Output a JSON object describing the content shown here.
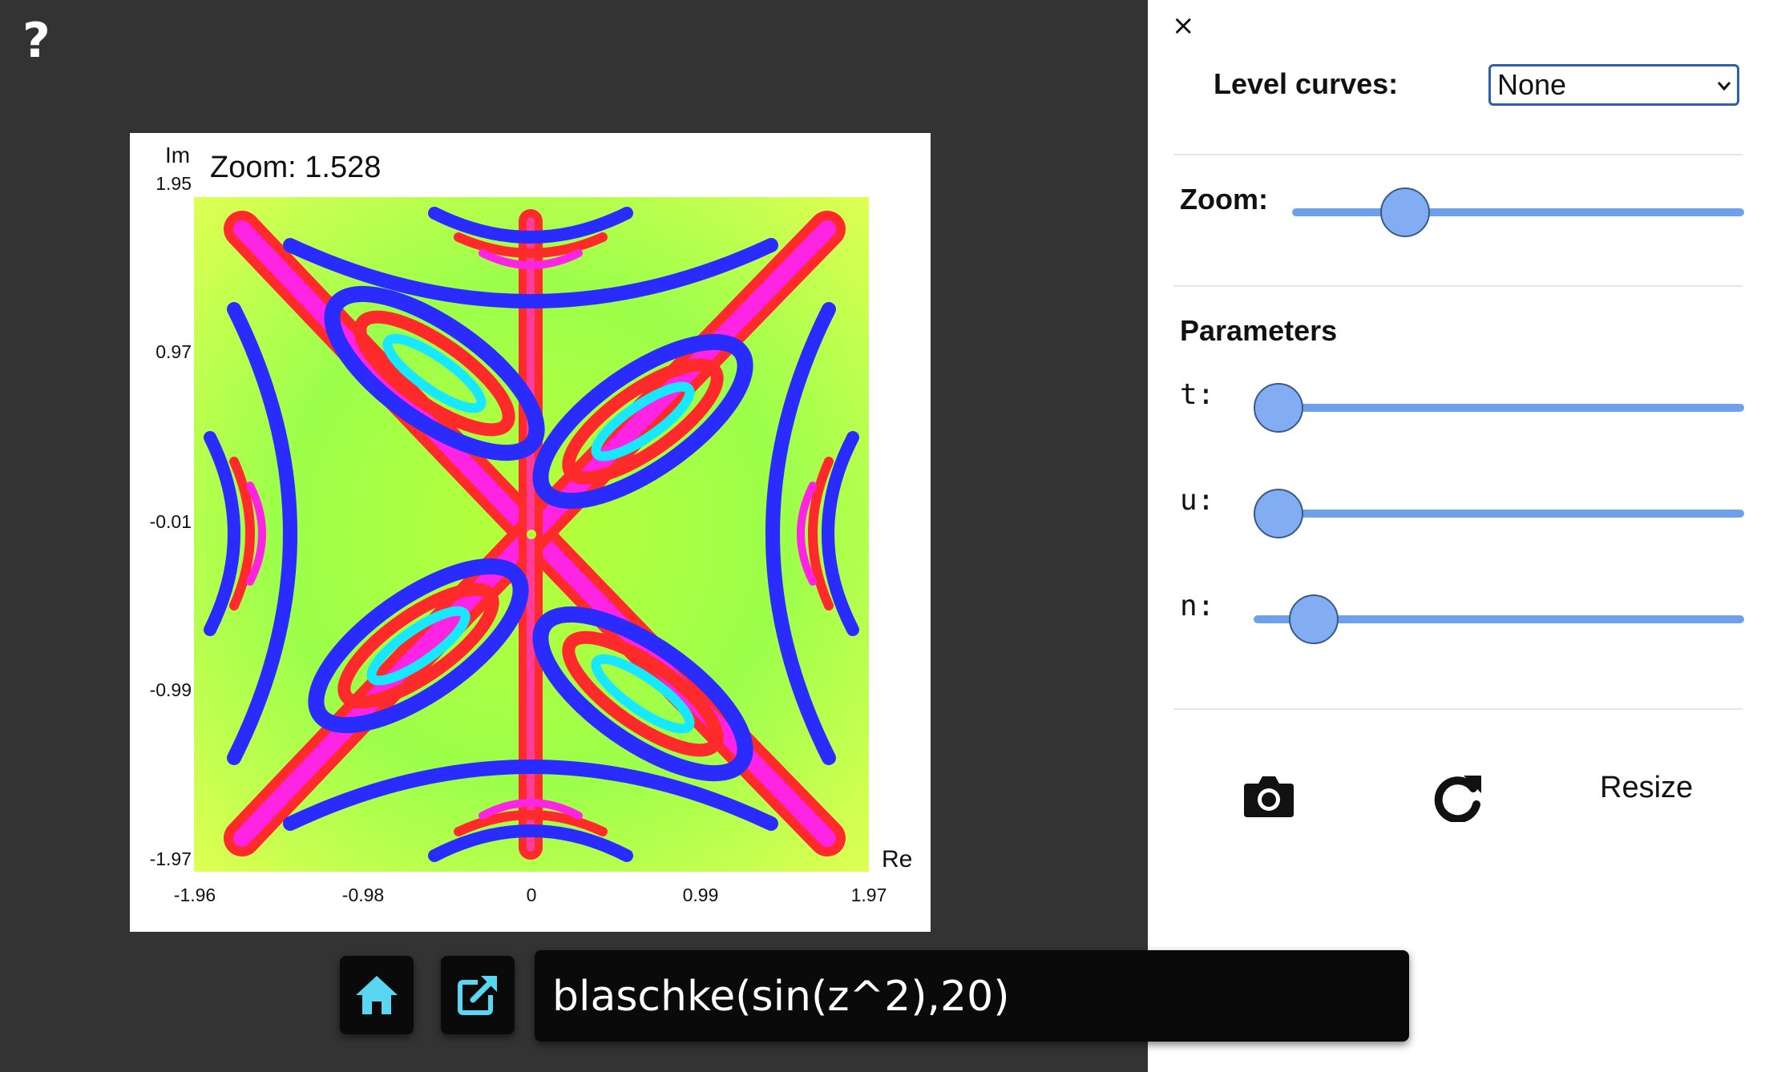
{
  "help": {
    "label": "?"
  },
  "plot": {
    "zoom_readout": "Zoom: 1.528",
    "axis_im": "Im",
    "axis_re": "Re",
    "y_ticks": [
      "1.95",
      "0.97",
      "-0.01",
      "-0.99",
      "-1.97"
    ],
    "x_ticks": [
      "-1.96",
      "-0.98",
      "0",
      "0.99",
      "1.97"
    ]
  },
  "panel": {
    "close_label": "×",
    "level_curves_label": "Level curves:",
    "level_curves_value": "None",
    "zoom_label": "Zoom:",
    "zoom_level": 0.22,
    "parameters_heading": "Parameters",
    "params": [
      {
        "label": "t:",
        "level": 0.0
      },
      {
        "label": "u:",
        "level": 0.0
      },
      {
        "label": "n:",
        "level": 0.08
      }
    ],
    "resize_label": "Resize",
    "icons": {
      "camera": "camera-icon",
      "reset": "redo-icon"
    }
  },
  "toolbar": {
    "formula": "blaschke(sin(z^2),20)",
    "icons": {
      "home": "home-icon",
      "open": "external-link-icon"
    },
    "accent": "#5ad6f2"
  }
}
